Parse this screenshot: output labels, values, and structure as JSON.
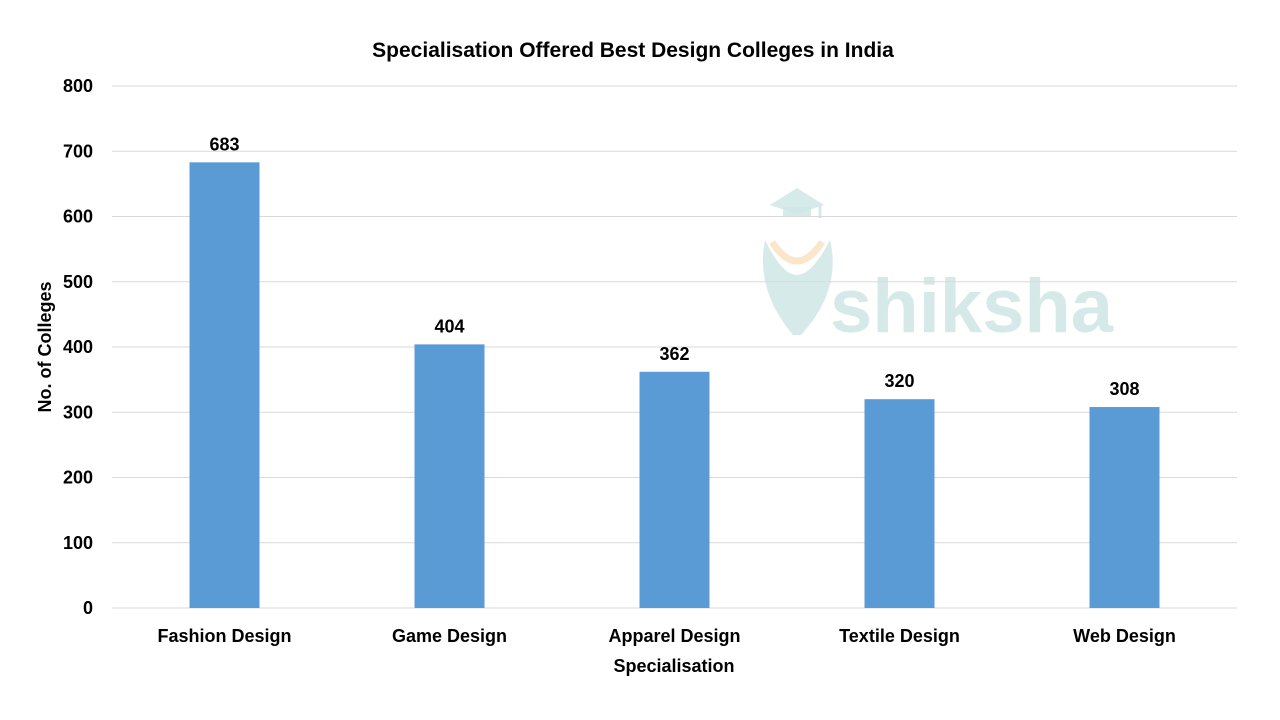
{
  "chart_data": {
    "type": "bar",
    "title": "Specialisation Offered Best Design Colleges in India",
    "xlabel": "Specialisation",
    "ylabel": "No. of Colleges",
    "categories": [
      "Fashion Design",
      "Game Design",
      "Apparel Design",
      "Textile Design",
      "Web Design"
    ],
    "values": [
      683,
      404,
      362,
      320,
      308
    ],
    "ylim": [
      0,
      800
    ],
    "yticks": [
      0,
      100,
      200,
      300,
      400,
      500,
      600,
      700,
      800
    ],
    "grid": true,
    "legend": "none",
    "bar_color": "#5b9bd5",
    "gridline_color": "#d9d9d9"
  },
  "watermark": {
    "text": "shiksha",
    "icon": "graduation-cap-icon"
  }
}
